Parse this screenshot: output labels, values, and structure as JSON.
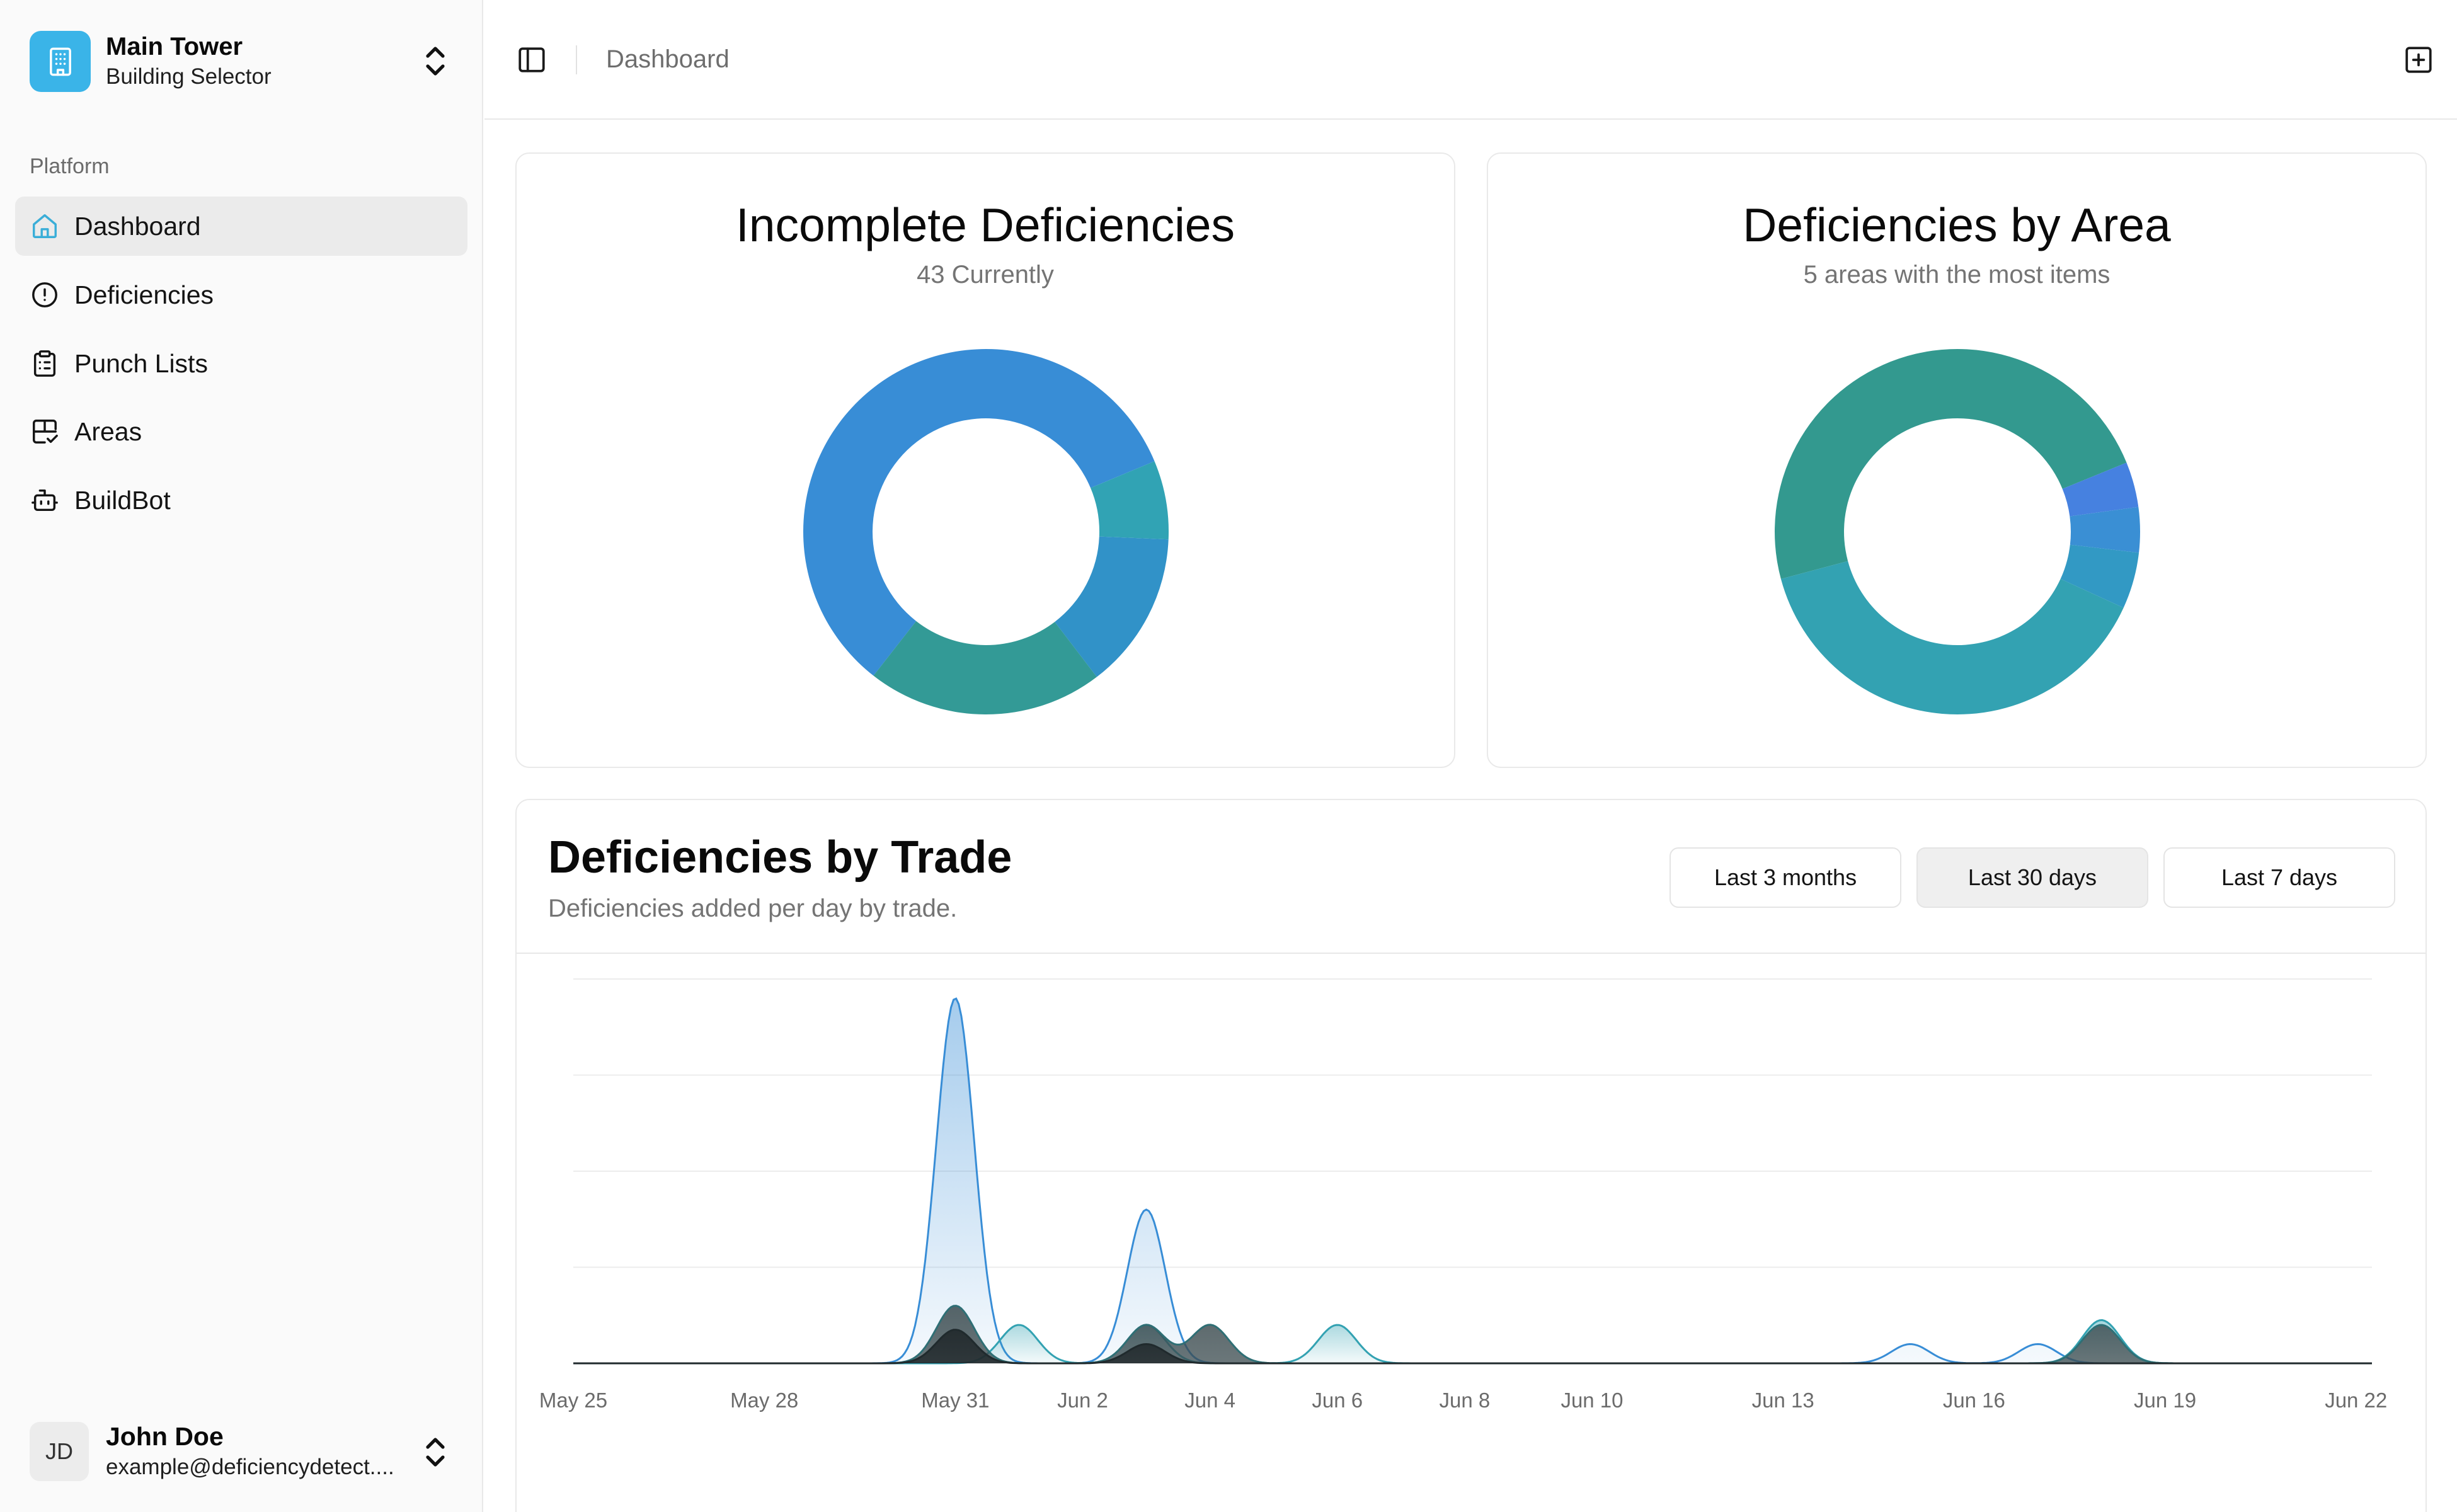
{
  "building_selector": {
    "name": "Main Tower",
    "subtitle": "Building Selector",
    "accent": "#3ab4e8",
    "logo_icon": "building-icon"
  },
  "sidebar": {
    "group_label": "Platform",
    "items": [
      {
        "label": "Dashboard",
        "icon": "home-icon",
        "active": true
      },
      {
        "label": "Deficiencies",
        "icon": "alert-circle-icon",
        "active": false
      },
      {
        "label": "Punch Lists",
        "icon": "clipboard-list-icon",
        "active": false
      },
      {
        "label": "Areas",
        "icon": "grid-check-icon",
        "active": false
      },
      {
        "label": "BuildBot",
        "icon": "bot-icon",
        "active": false
      }
    ]
  },
  "user": {
    "initials": "JD",
    "name": "John Doe",
    "email": "example@deficiencydetect...."
  },
  "header": {
    "breadcrumb": "Dashboard"
  },
  "incomplete_card": {
    "title": "Incomplete Deficiencies",
    "subtitle": "43 Currently"
  },
  "area_card": {
    "title": "Deficiencies by Area",
    "subtitle": "5 areas with the most items"
  },
  "trade_card": {
    "title": "Deficiencies by Trade",
    "subtitle": "Deficiencies added per day by trade.",
    "ranges": [
      {
        "label": "Last 3 months",
        "selected": false
      },
      {
        "label": "Last 30 days",
        "selected": true
      },
      {
        "label": "Last 7 days",
        "selected": false
      }
    ]
  },
  "chart_data": [
    {
      "type": "pie",
      "donut": true,
      "slices": [
        {
          "value": 25,
          "color": "#388dd6"
        },
        {
          "value": 3,
          "color": "#31a3b4"
        },
        {
          "value": 6,
          "color": "#3192c8"
        },
        {
          "value": 9,
          "color": "#339a96"
        }
      ]
    },
    {
      "type": "pie",
      "donut": true,
      "slices": [
        {
          "value": 48,
          "color": "#33998f"
        },
        {
          "value": 4,
          "color": "#4681e0"
        },
        {
          "value": 4,
          "color": "#3a8fd4"
        },
        {
          "value": 5,
          "color": "#3299c4"
        },
        {
          "value": 39,
          "color": "#33a2b2"
        }
      ]
    },
    {
      "type": "area",
      "x_tick_labels": [
        "May 25",
        "May 28",
        "May 31",
        "Jun 2",
        "Jun 4",
        "Jun 6",
        "Jun 8",
        "Jun 10",
        "Jun 13",
        "Jun 16",
        "Jun 19",
        "Jun 22"
      ],
      "x_tick_days": [
        0,
        3,
        6,
        8,
        10,
        12,
        14,
        16,
        19,
        22,
        25,
        28
      ],
      "ylim": [
        0,
        8
      ],
      "grid": true,
      "series": [
        {
          "color": "#388dd6",
          "fill": "#388dd6",
          "points": [
            [
              6,
              7.6
            ],
            [
              9,
              3.2
            ],
            [
              21,
              0.4
            ],
            [
              23,
              0.4
            ]
          ]
        },
        {
          "color": "#33a2b2",
          "fill": "#33a2b2",
          "points": [
            [
              7,
              0.8
            ],
            [
              9,
              0.8
            ],
            [
              12,
              0.8
            ],
            [
              24,
              0.9
            ]
          ]
        },
        {
          "color": "#2f6f75",
          "fill": "#3a4a4e",
          "points": [
            [
              6,
              1.2
            ],
            [
              9,
              0.8
            ],
            [
              10,
              0.8
            ],
            [
              24,
              0.8
            ]
          ]
        },
        {
          "color": "#202a2d",
          "fill": "#1c2326",
          "points": [
            [
              6,
              0.7
            ],
            [
              9,
              0.4
            ]
          ]
        }
      ]
    }
  ]
}
